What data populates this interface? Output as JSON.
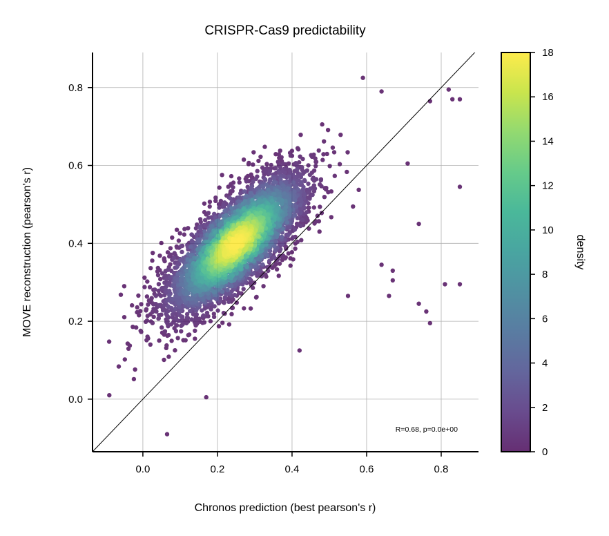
{
  "chart_data": {
    "type": "scatter",
    "title": "CRISPR-Cas9 predictability",
    "xlabel": "Chronos prediction (best pearson's r)",
    "ylabel": "MOVE reconstruction (pearson's r)",
    "xlim": [
      -0.135,
      0.9
    ],
    "ylim": [
      -0.135,
      0.89
    ],
    "xticks": [
      0.0,
      0.2,
      0.4,
      0.6,
      0.8
    ],
    "xtick_labels": [
      "0.0",
      "0.2",
      "0.4",
      "0.6",
      "0.8"
    ],
    "yticks": [
      0.0,
      0.2,
      0.4,
      0.6,
      0.8
    ],
    "ytick_labels": [
      "0.0",
      "0.2",
      "0.4",
      "0.6",
      "0.8"
    ],
    "grid": true,
    "reference_line": "y = x",
    "annotation": "R=0.68, p=0.0e+00",
    "colorbar": {
      "label": "density",
      "colormap": "viridis",
      "range": [
        0,
        18
      ],
      "ticks": [
        0,
        2,
        4,
        6,
        8,
        10,
        12,
        14,
        16,
        18
      ],
      "tick_labels": [
        "0",
        "2",
        "4",
        "6",
        "8",
        "10",
        "12",
        "14",
        "16",
        "18"
      ]
    },
    "distribution": {
      "peak": [
        0.22,
        0.36
      ],
      "correlation": 0.68,
      "x_range": [
        -0.1,
        0.85
      ],
      "y_range": [
        -0.09,
        0.84
      ]
    },
    "outliers": [
      [
        -0.09,
        0.01
      ],
      [
        -0.05,
        0.29
      ],
      [
        0.065,
        -0.09
      ],
      [
        0.17,
        0.005
      ],
      [
        0.42,
        0.125
      ],
      [
        0.77,
        0.195
      ],
      [
        0.76,
        0.225
      ],
      [
        0.74,
        0.245
      ],
      [
        0.81,
        0.295
      ],
      [
        0.85,
        0.295
      ],
      [
        0.85,
        0.545
      ],
      [
        0.67,
        0.33
      ],
      [
        0.67,
        0.305
      ],
      [
        0.74,
        0.45
      ],
      [
        0.64,
        0.345
      ],
      [
        0.83,
        0.77
      ],
      [
        0.85,
        0.77
      ],
      [
        0.82,
        0.795
      ],
      [
        0.77,
        0.765
      ],
      [
        0.59,
        0.825
      ],
      [
        0.64,
        0.79
      ],
      [
        0.71,
        0.605
      ],
      [
        0.66,
        0.265
      ],
      [
        0.55,
        0.265
      ]
    ],
    "point_count": 4600
  }
}
